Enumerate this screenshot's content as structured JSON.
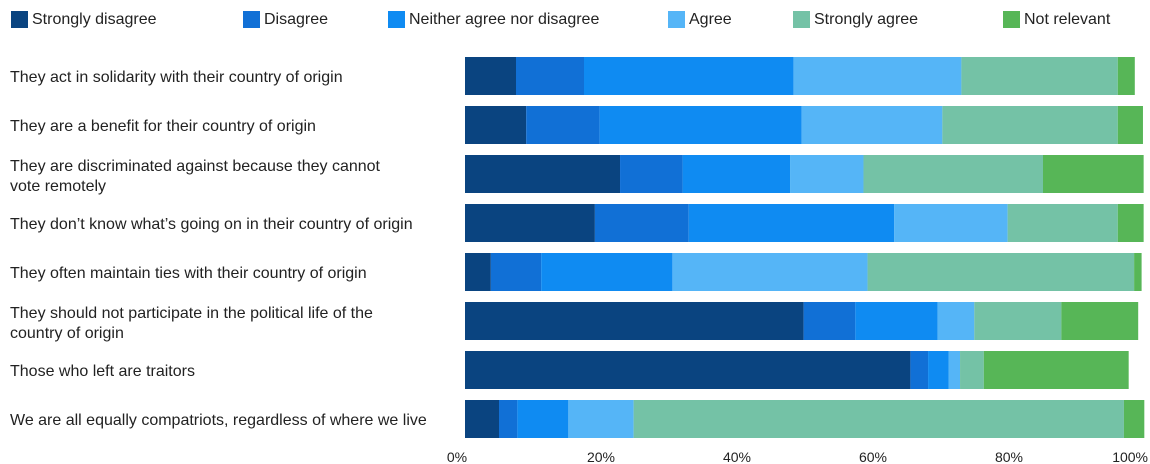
{
  "chart_data": {
    "type": "bar",
    "orientation": "horizontal",
    "stacked": true,
    "legend_position": "top",
    "grid": false,
    "xlim": [
      0,
      100
    ],
    "x_ticks": [
      "0%",
      "20%",
      "40%",
      "60%",
      "80%",
      "100%"
    ],
    "categories": [
      "They act in solidarity with their country of origin",
      "They are a benefit for their country of origin",
      "They are discriminated against because they cannot vote remotely",
      "They don’t know what’s going on in their country of origin",
      "They often maintain ties with their country of origin",
      "They should not participate in the political life of the country of origin",
      "Those who left are traitors",
      "We are all equally compatriots, regardless of where we live"
    ],
    "category_label_lines": [
      [
        "They act in solidarity with their country of origin"
      ],
      [
        "They are a benefit for their country of origin"
      ],
      [
        "They are discriminated against because they cannot",
        "vote remotely"
      ],
      [
        "They don’t know what’s going on in their country of origin"
      ],
      [
        "They often maintain ties with their country of origin"
      ],
      [
        "They should not participate in the political life of the",
        "country of origin"
      ],
      [
        "Those who left are traitors"
      ],
      [
        "We are all equally compatriots, regardless of where we live"
      ]
    ],
    "series": [
      {
        "name": "Strongly disagree",
        "color": "#0a4480",
        "values": [
          7.5,
          9.0,
          22.8,
          19.1,
          3.8,
          49.8,
          65.5,
          5.0
        ]
      },
      {
        "name": "Disagree",
        "color": "#1170d6",
        "values": [
          10.0,
          10.8,
          9.2,
          13.8,
          7.4,
          7.6,
          2.6,
          2.7
        ]
      },
      {
        "name": "Neither agree nor disagree",
        "color": "#0f8bf2",
        "values": [
          30.8,
          29.7,
          15.8,
          30.2,
          19.3,
          12.1,
          3.0,
          7.5
        ]
      },
      {
        "name": "Agree",
        "color": "#55b5f7",
        "values": [
          24.7,
          20.7,
          10.8,
          16.7,
          28.7,
          5.4,
          1.7,
          9.6
        ]
      },
      {
        "name": "Strongly agree",
        "color": "#74c2a6",
        "values": [
          23.0,
          25.8,
          26.4,
          16.2,
          39.2,
          12.8,
          3.5,
          72.1
        ]
      },
      {
        "name": "Not relevant",
        "color": "#57b657",
        "values": [
          2.5,
          3.7,
          14.8,
          3.8,
          1.1,
          11.3,
          21.3,
          3.0
        ]
      }
    ]
  }
}
